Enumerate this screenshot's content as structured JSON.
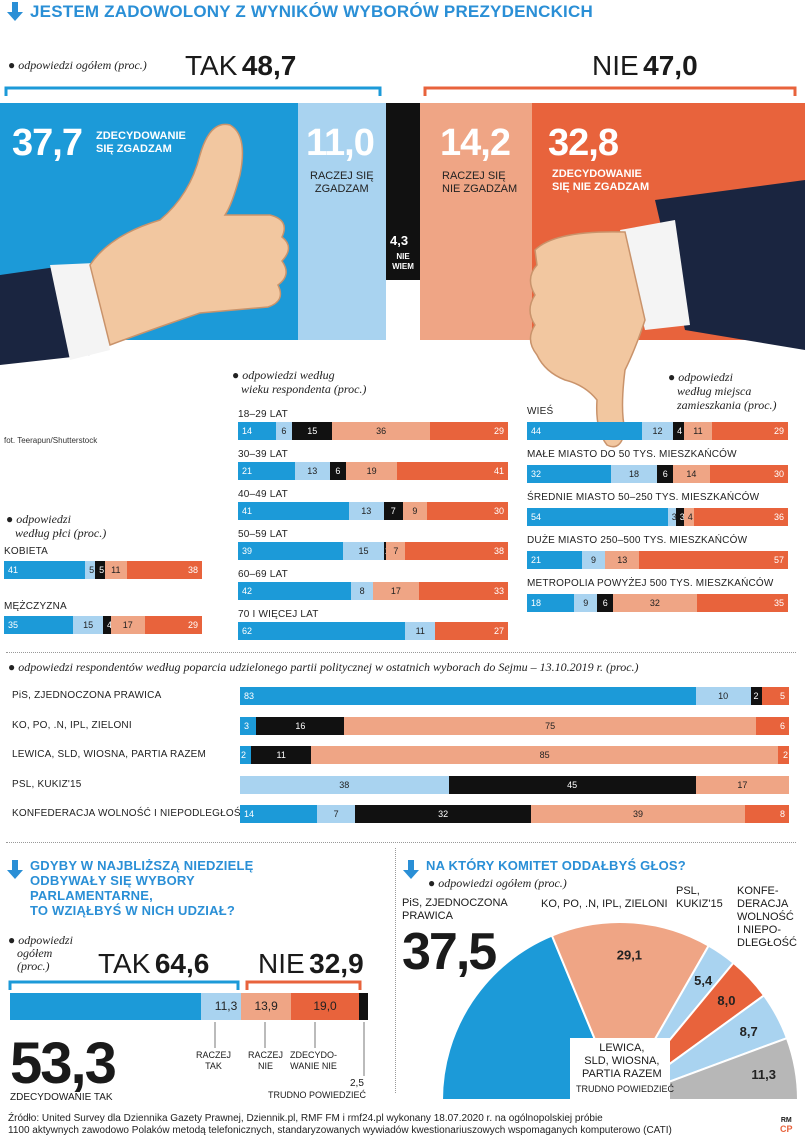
{
  "colors": {
    "blue": "#1c9ad8",
    "lightblue": "#a9d3f0",
    "black": "#111111",
    "salmon": "#efa585",
    "orange": "#e8633c",
    "grey": "#b7b7b7",
    "title": "#2a8fd6"
  },
  "title": "JESTEM ZADOWOLONY Z WYNIKÓW WYBORÓW PREZYDENCKICH",
  "overall": {
    "note": "odpowiedzi ogółem (proc.)",
    "yes_word": "TAK",
    "yes_total": "48,7",
    "no_word": "NIE",
    "no_total": "47,0",
    "photo_credit": "fot. Teerapun/Shutterstock",
    "segments": [
      {
        "value": "37,7",
        "label1": "ZDECYDOWANIE",
        "label2": "SIĘ ZGADZAM"
      },
      {
        "value": "11,0",
        "label1": "RACZEJ SIĘ",
        "label2": "ZGADZAM"
      },
      {
        "value": "4,3",
        "label1": "NIE",
        "label2": "WIEM"
      },
      {
        "value": "14,2",
        "label1": "RACZEJ SIĘ",
        "label2": "NIE ZGADZAM"
      },
      {
        "value": "32,8",
        "label1": "ZDECYDOWANIE",
        "label2": "SIĘ NIE ZGADZAM"
      }
    ]
  },
  "gender": {
    "note1": "odpowiedzi",
    "note2": "według płci (proc.)",
    "rows": [
      {
        "label": "KOBIETA",
        "values": [
          41,
          5,
          5,
          11,
          38
        ]
      },
      {
        "label": "MĘŻCZYZNA",
        "values": [
          35,
          15,
          4,
          17,
          29
        ]
      }
    ]
  },
  "age": {
    "note1": "odpowiedzi według",
    "note2": "wieku respondenta (proc.)",
    "rows": [
      {
        "label": "18–29 LAT",
        "values": [
          14,
          6,
          15,
          36,
          29
        ]
      },
      {
        "label": "30–39 LAT",
        "values": [
          21,
          13,
          6,
          19,
          41
        ]
      },
      {
        "label": "40–49 LAT",
        "values": [
          41,
          13,
          7,
          9,
          30
        ]
      },
      {
        "label": "50–59 LAT",
        "values": [
          39,
          15,
          1,
          7,
          38
        ]
      },
      {
        "label": "60–69 LAT",
        "values": [
          42,
          8,
          0,
          17,
          33
        ]
      },
      {
        "label": "70 I WIĘCEJ LAT",
        "values": [
          62,
          11,
          0,
          0,
          27
        ]
      }
    ]
  },
  "place": {
    "note1": "odpowiedzi",
    "note2": "według miejsca",
    "note3": "zamieszkania (proc.)",
    "rows": [
      {
        "label": "WIEŚ",
        "values": [
          44,
          12,
          4,
          11,
          29
        ]
      },
      {
        "label": "MAŁE MIASTO DO 50 TYS. MIESZKAŃCÓW",
        "values": [
          32,
          18,
          6,
          14,
          30
        ]
      },
      {
        "label": "ŚREDNIE MIASTO 50–250 TYS. MIESZKAŃCÓW",
        "values": [
          54,
          3,
          3,
          4,
          36
        ]
      },
      {
        "label": "DUŻE MIASTO 250–500 TYS. MIESZKAŃCÓW",
        "values": [
          21,
          9,
          0,
          13,
          57
        ]
      },
      {
        "label": "METROPOLIA POWYŻEJ 500 TYS. MIESZKAŃCÓW",
        "values": [
          18,
          9,
          6,
          32,
          35
        ]
      }
    ]
  },
  "party": {
    "note": "odpowiedzi respondentów według poparcia udzielonego partii politycznej w ostatnich wyborach do Sejmu – 13.10.2019 r. (proc.)",
    "rows": [
      {
        "label": "PiS, ZJEDNOCZONA PRAWICA",
        "values": [
          83,
          10,
          2,
          0,
          5
        ]
      },
      {
        "label": "KO, PO, .N, IPL, ZIELONI",
        "values": [
          3,
          0,
          16,
          75,
          6
        ]
      },
      {
        "label": "LEWICA, SLD, WIOSNA, PARTIA RAZEM",
        "values": [
          2,
          0,
          11,
          85,
          2
        ]
      },
      {
        "label": "PSL, KUKIZ'15",
        "values": [
          0,
          38,
          45,
          17,
          0
        ]
      },
      {
        "label": "KONFEDERACJA WOLNOŚĆ I NIEPODLEGŁOŚĆ",
        "values": [
          14,
          7,
          32,
          39,
          8
        ]
      }
    ]
  },
  "turnout": {
    "title1": "GDYBY W NAJBLIŻSZĄ NIEDZIELĘ",
    "title2": "ODBYWAŁY SIĘ WYBORY",
    "title3": "PARLAMENTARNE,",
    "title4": "TO WZIĄŁBYŚ W NICH UDZIAŁ?",
    "note1": "odpowiedzi",
    "note2": "ogółem",
    "note3": "(proc.)",
    "yes_word": "TAK",
    "yes_total": "64,6",
    "no_word": "NIE",
    "no_total": "32,9",
    "segments": [
      {
        "value": "53,3",
        "label": "ZDECYDOWANIE TAK"
      },
      {
        "value": "11,3",
        "label1": "RACZEJ",
        "label2": "TAK"
      },
      {
        "value": "13,9",
        "label1": "RACZEJ",
        "label2": "NIE"
      },
      {
        "value": "19,0",
        "label1": "ZDECYDO-",
        "label2": "WANIE NIE"
      },
      {
        "value": "2,5",
        "label": "TRUDNO POWIEDZIEĆ"
      }
    ]
  },
  "committee": {
    "title": "NA KTÓRY KOMITET ODDAŁBYŚ GŁOS?",
    "note": "odpowiedzi ogółem (proc.)",
    "slices": [
      {
        "name": "PiS, ZJEDNOCZONA PRAWICA",
        "value": 37.5,
        "label": "37,5"
      },
      {
        "name": "KO, PO, .N, IPL, ZIELONI",
        "value": 29.1,
        "label": "29,1"
      },
      {
        "name": "PSL, KUKIZ'15",
        "value": 5.4,
        "label": "5,4"
      },
      {
        "name": "KONFEDERACJA WOLNOŚĆ I NIEPODLEGŁOŚĆ",
        "value": 8.0,
        "label": "8,0"
      },
      {
        "name": "LEWICA, SLD, WIOSNA, PARTIA RAZEM",
        "value": 8.7,
        "label": "8,7"
      },
      {
        "name": "TRUDNO POWIEDZIEĆ",
        "value": 11.3,
        "label": "11,3"
      }
    ],
    "label_pis1": "PiS, ZJEDNOCZONA",
    "label_pis2": "PRAWICA",
    "label_ko": "KO, PO, .N, IPL, ZIELONI",
    "label_psl1": "PSL,",
    "label_psl2": "KUKIZ'15",
    "label_konf1": "KONFE-",
    "label_konf2": "DERACJA",
    "label_konf3": "WOLNOŚĆ",
    "label_konf4": "I NIEPO-",
    "label_konf5": "DLEGŁOŚĆ",
    "label_lew1": "LEWICA,",
    "label_lew2": "SLD, WIOSNA,",
    "label_lew3": "PARTIA RAZEM",
    "label_tp": "TRUDNO POWIEDZIEĆ"
  },
  "source1": "Źródło: United Survey dla Dziennika Gazety Prawnej, Dziennik.pl, RMF FM i rmf24.pl wykonany 18.07.2020 r. na ogólnopolskiej próbie",
  "source2": "1100 aktywnych zawodowo Polaków metodą telefonicznych, standaryzowanych wywiadów kwestionariuszowych wspomaganych komputerowo (CATI)",
  "badge_top": "RM",
  "badge_bottom": "CP",
  "chart_data": [
    {
      "type": "bar",
      "title": "JESTEM ZADOWOLONY Z WYNIKÓW WYBORÓW PREZYDENCKICH – ogółem",
      "categories": [
        "ZDECYDOWANIE SIĘ ZGADZAM",
        "RACZEJ SIĘ ZGADZAM",
        "NIE WIEM",
        "RACZEJ SIĘ NIE ZGADZAM",
        "ZDECYDOWANIE SIĘ NIE ZGADZAM"
      ],
      "values": [
        37.7,
        11.0,
        4.3,
        14.2,
        32.8
      ]
    },
    {
      "type": "bar",
      "title": "według płci",
      "categories": [
        "KOBIETA",
        "MĘŻCZYZNA"
      ],
      "stacked": true
    },
    {
      "type": "bar",
      "title": "według wieku",
      "stacked": true
    },
    {
      "type": "bar",
      "title": "według miejsca zamieszkania",
      "stacked": true
    },
    {
      "type": "bar",
      "title": "według poparcia partii",
      "stacked": true
    },
    {
      "type": "bar",
      "title": "GDYBY W NAJBLIŻSZĄ NIEDZIELĘ ODBYWAŁY SIĘ WYBORY PARLAMENTARNE",
      "categories": [
        "ZDECYDOWANIE TAK",
        "RACZEJ TAK",
        "RACZEJ NIE",
        "ZDECYDOWANIE NIE",
        "TRUDNO POWIEDZIEĆ"
      ],
      "values": [
        53.3,
        11.3,
        13.9,
        19.0,
        2.5
      ]
    },
    {
      "type": "pie",
      "title": "NA KTÓRY KOMITET ODDAŁBYŚ GŁOS?",
      "categories": [
        "PiS, ZJEDNOCZONA PRAWICA",
        "KO, PO, .N, IPL, ZIELONI",
        "PSL, KUKIZ'15",
        "KONFEDERACJA WOLNOŚĆ I NIEPODLEGŁOŚĆ",
        "LEWICA, SLD, WIOSNA, PARTIA RAZEM",
        "TRUDNO POWIEDZIEĆ"
      ],
      "values": [
        37.5,
        29.1,
        5.4,
        8.0,
        8.7,
        11.3
      ]
    }
  ]
}
